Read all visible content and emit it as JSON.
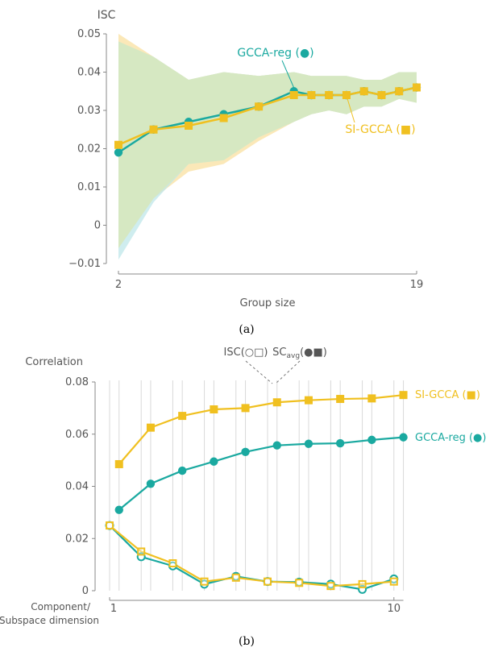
{
  "colors": {
    "teal": "#1aa9a0",
    "gold": "#f0c020",
    "band_teal": "#bfe7ea",
    "band_gold": "#fbe8b8",
    "band_overlap": "#d6e8c2",
    "axis": "#888888",
    "grid": "#d9d9d9"
  },
  "chart_data": [
    {
      "type": "line",
      "panel_label": "(a)",
      "ylabel": "ISC",
      "xlabel": "Group size",
      "xtick_labels": [
        "2",
        "19"
      ],
      "yticks": [
        -0.01,
        0,
        0.01,
        0.02,
        0.03,
        0.04,
        0.05
      ],
      "ytick_labels": [
        "−0.01",
        "0",
        "0.01",
        "0.02",
        "0.03",
        "0.04",
        "0.05"
      ],
      "xlim": [
        2,
        19
      ],
      "ylim": [
        -0.01,
        0.05
      ],
      "annotations": [
        "GCCA-reg (●)",
        "SI-GCCA (■)"
      ],
      "x": [
        2,
        4,
        6,
        8,
        10,
        12,
        13,
        14,
        15,
        16,
        17,
        18,
        19
      ],
      "series": [
        {
          "values": [
            0.019,
            0.025,
            0.027,
            0.029,
            0.031,
            0.035,
            0.034,
            0.034,
            0.034,
            0.035,
            0.034,
            0.035,
            0.036
          ],
          "marker": "circle",
          "color_key": "teal",
          "band_upper": [
            0.048,
            0.044,
            0.038,
            0.04,
            0.039,
            0.04,
            0.039,
            0.039,
            0.039,
            0.038,
            0.038,
            0.04,
            0.04
          ],
          "band_lower": [
            -0.009,
            0.006,
            0.016,
            0.017,
            0.023,
            0.027,
            0.029,
            0.03,
            0.029,
            0.031,
            0.031,
            0.033,
            0.032
          ]
        },
        {
          "values": [
            0.021,
            0.025,
            0.026,
            0.028,
            0.031,
            0.034,
            0.034,
            0.034,
            0.034,
            0.035,
            0.034,
            0.035,
            0.036
          ],
          "marker": "square",
          "color_key": "gold",
          "band_upper": [
            0.05,
            0.044,
            0.038,
            0.04,
            0.039,
            0.04,
            0.039,
            0.039,
            0.039,
            0.038,
            0.038,
            0.04,
            0.04
          ],
          "band_lower": [
            -0.006,
            0.007,
            0.014,
            0.016,
            0.022,
            0.027,
            0.029,
            0.03,
            0.029,
            0.031,
            0.031,
            0.033,
            0.032
          ]
        }
      ]
    },
    {
      "type": "line",
      "panel_label": "(b)",
      "ylabel": "Correlation",
      "xlabel": [
        "Component/",
        "Subspace dimension"
      ],
      "xtick_labels": [
        "1",
        "10"
      ],
      "yticks": [
        0,
        0.02,
        0.04,
        0.06,
        0.08
      ],
      "ytick_labels": [
        "0",
        "0.02",
        "0.04",
        "0.06",
        "0.08"
      ],
      "xlim": [
        0.9,
        10.3
      ],
      "ylim": [
        0,
        0.08
      ],
      "legend_header": {
        "isc": "ISC(○□)",
        "sc_prefix": "SC",
        "sc_sub": "avg",
        "sc_suffix": "(●■)"
      },
      "series": [
        {
          "name": "SI-GCCA (■)",
          "metric": "SC_avg",
          "marker": "square-filled",
          "color_key": "gold",
          "x": [
            1.3,
            2.3,
            3.3,
            4.3,
            5.3,
            6.3,
            7.3,
            8.3,
            9.3,
            10.3
          ],
          "values": [
            0.0485,
            0.0625,
            0.067,
            0.0695,
            0.07,
            0.0722,
            0.073,
            0.0735,
            0.0737,
            0.075
          ]
        },
        {
          "name": "GCCA-reg (●)",
          "metric": "SC_avg",
          "marker": "circle-filled",
          "color_key": "teal",
          "x": [
            1.3,
            2.3,
            3.3,
            4.3,
            5.3,
            6.3,
            7.3,
            8.3,
            9.3,
            10.3
          ],
          "values": [
            0.031,
            0.041,
            0.046,
            0.0495,
            0.0532,
            0.0557,
            0.0563,
            0.0565,
            0.0578,
            0.0588
          ]
        },
        {
          "metric": "ISC",
          "marker": "circle-open",
          "color_key": "teal",
          "x": [
            1,
            2,
            3,
            4,
            5,
            6,
            7,
            8,
            9,
            10
          ],
          "values": [
            0.025,
            0.013,
            0.0095,
            0.0025,
            0.0055,
            0.0035,
            0.0033,
            0.0025,
            0.0005,
            0.0045
          ]
        },
        {
          "metric": "ISC",
          "marker": "square-open",
          "color_key": "gold",
          "x": [
            1,
            2,
            3,
            4,
            5,
            6,
            7,
            8,
            9,
            10
          ],
          "values": [
            0.025,
            0.015,
            0.0105,
            0.0035,
            0.005,
            0.0035,
            0.003,
            0.0018,
            0.0025,
            0.0035
          ]
        }
      ],
      "grid": "vertical"
    }
  ]
}
